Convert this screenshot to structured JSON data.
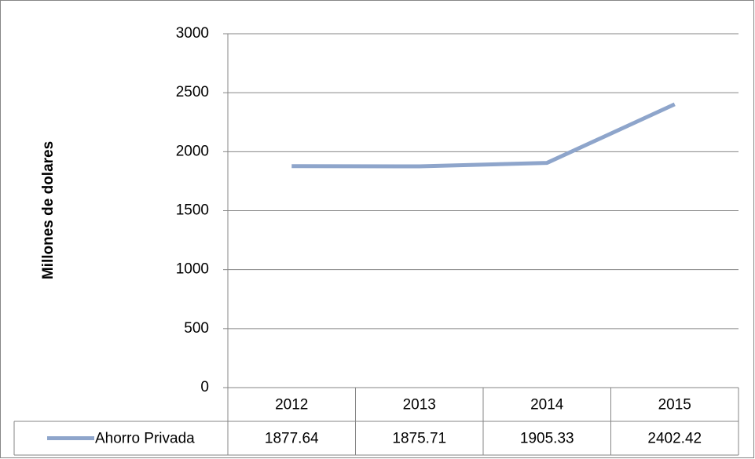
{
  "chart_data": {
    "type": "line",
    "y_label": "Millones de dolares",
    "categories": [
      "2012",
      "2013",
      "2014",
      "2015"
    ],
    "series": [
      {
        "name": "Ahorro Privada",
        "color": "#8ea5cb",
        "values": [
          1877.64,
          1875.71,
          1905.33,
          2402.42
        ]
      }
    ],
    "ylim": [
      0,
      3000
    ],
    "yticks": [
      0,
      500,
      1000,
      1500,
      2000,
      2500,
      3000
    ],
    "grid": true,
    "legend": "data-table"
  }
}
